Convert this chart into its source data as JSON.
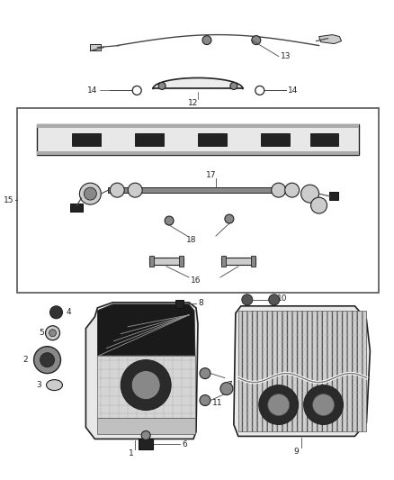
{
  "bg_color": "#ffffff",
  "fig_width": 4.38,
  "fig_height": 5.33,
  "dpi": 100,
  "fs": 6.5,
  "lc": "#444444",
  "dark": "#222222",
  "mid": "#888888",
  "light": "#cccccc",
  "lighter": "#e8e8e8"
}
